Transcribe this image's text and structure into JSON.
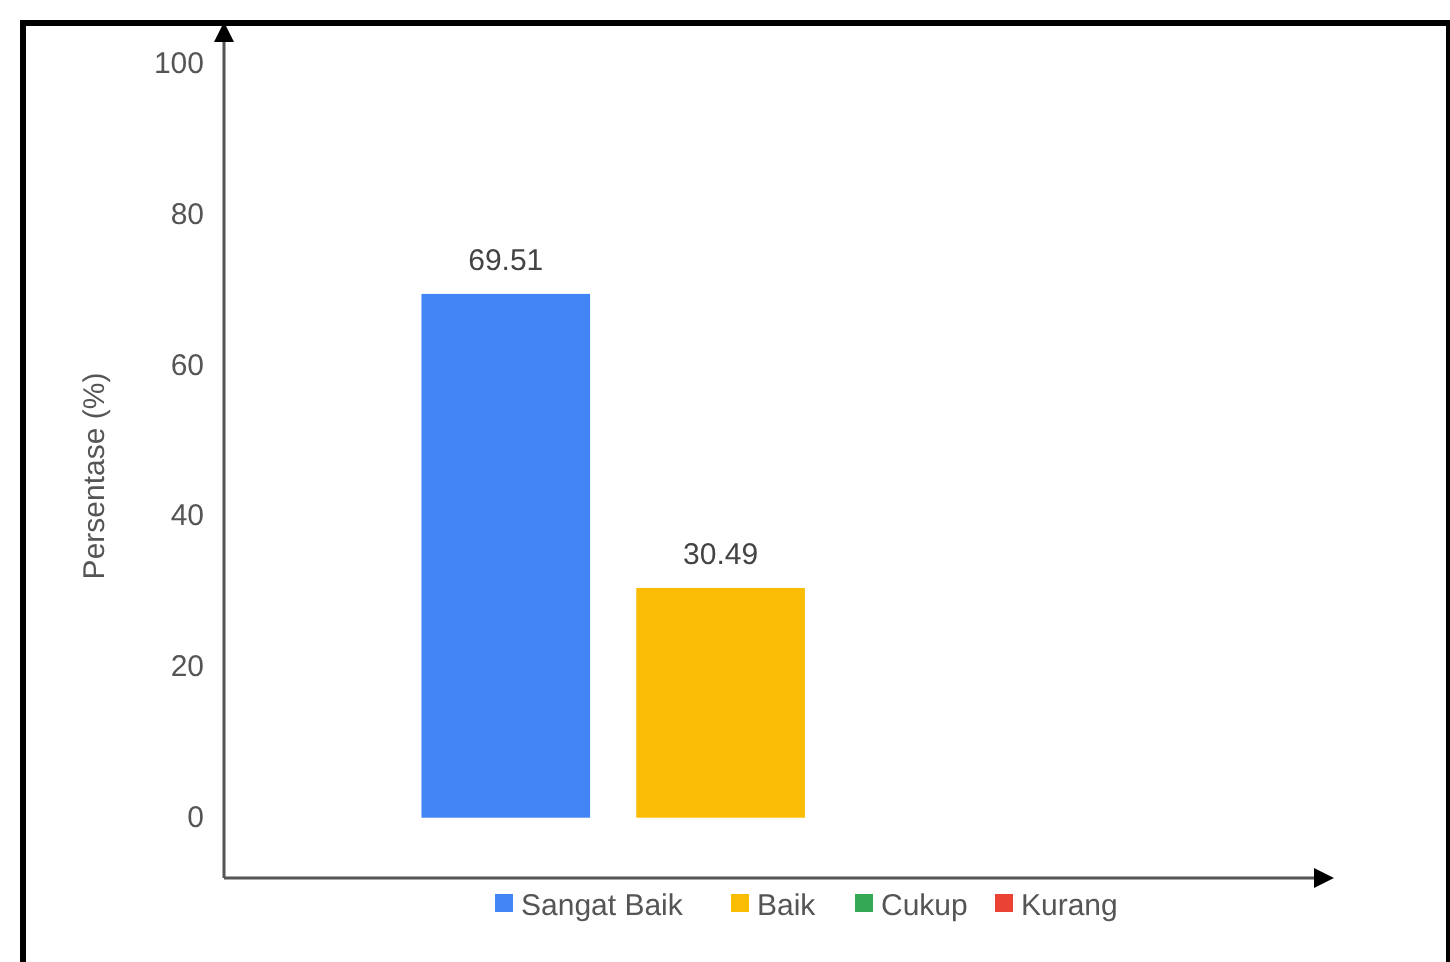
{
  "chart_data": {
    "type": "bar",
    "ylabel": "Persentase (%)",
    "categories": [
      null
    ],
    "series": [
      {
        "name": "Sangat Baik",
        "color": "#4285f4",
        "values": [
          69.51
        ]
      },
      {
        "name": "Baik",
        "color": "#fbbc04",
        "values": [
          30.49
        ]
      },
      {
        "name": "Cukup",
        "color": "#34a853",
        "values": [
          null
        ]
      },
      {
        "name": "Kurang",
        "color": "#ea4335",
        "values": [
          null
        ]
      }
    ],
    "ylim": [
      -8,
      104
    ],
    "yticks": [
      0,
      20,
      40,
      60,
      80,
      100
    ],
    "data_labels": true,
    "legend": "bottom",
    "grid": false
  }
}
